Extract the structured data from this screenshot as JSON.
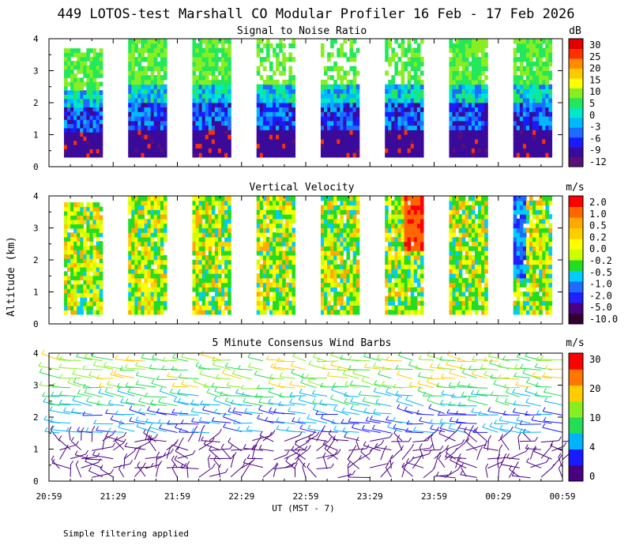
{
  "title": "449 LOTOS-test Marshall CO Modular Profiler 16 Feb - 17 Feb 2026",
  "shared_ylabel": "Altitude (km)",
  "footer_note": "Simple filtering applied",
  "colors": {
    "snr": [
      "#5a0e78",
      "#3a0a9a",
      "#1a1aff",
      "#1e6cff",
      "#00b8ff",
      "#00e8c8",
      "#22e85a",
      "#88ee22",
      "#ffff00",
      "#ffc800",
      "#ff8c00",
      "#ff3000",
      "#e00000"
    ],
    "velocity": [
      "#330033",
      "#4b0082",
      "#2020ff",
      "#1e6cff",
      "#00ccff",
      "#22dd22",
      "#ccff00",
      "#ffff00",
      "#ffcc00",
      "#ffaa00",
      "#ff6600",
      "#ff0000"
    ],
    "wind": [
      "#4b0082",
      "#1a1aff",
      "#00b4ff",
      "#22dd55",
      "#88ee22",
      "#ffcc00",
      "#ff7700",
      "#ff0000"
    ]
  },
  "chart_data": [
    {
      "type": "heatmap",
      "title": "Signal to Noise Ratio",
      "units": "dB",
      "xlabel": "UT  (MST - 7)",
      "ylabel": "Altitude (km)",
      "x_ticks": [
        "20:59",
        "21:29",
        "21:59",
        "22:29",
        "22:59",
        "23:29",
        "23:59",
        "00:29",
        "00:59"
      ],
      "y_ticks": [
        0,
        1,
        2,
        3,
        4
      ],
      "ylim": [
        0,
        4
      ],
      "colorbar_labels": [
        "30",
        "25",
        "20",
        "15",
        "10",
        "5",
        "0",
        "-3",
        "-6",
        "-9",
        "-12"
      ],
      "segments": [
        {
          "start": "21:06",
          "end": "21:24",
          "top_km": 3.7
        },
        {
          "start": "21:36",
          "end": "21:54",
          "top_km": 4.0
        },
        {
          "start": "22:06",
          "end": "22:24",
          "top_km": 4.0
        },
        {
          "start": "22:36",
          "end": "22:54",
          "top_km": 4.0
        },
        {
          "start": "23:06",
          "end": "23:24",
          "top_km": 4.0
        },
        {
          "start": "23:36",
          "end": "23:54",
          "top_km": 4.0
        },
        {
          "start": "00:06",
          "end": "00:24",
          "top_km": 4.0
        },
        {
          "start": "00:36",
          "end": "00:54",
          "top_km": 4.0
        }
      ]
    },
    {
      "type": "heatmap",
      "title": "Vertical Velocity",
      "units": "m/s",
      "xlabel": "UT  (MST - 7)",
      "ylabel": "Altitude (km)",
      "x_ticks": [
        "20:59",
        "21:29",
        "21:59",
        "22:29",
        "22:59",
        "23:29",
        "23:59",
        "00:29",
        "00:59"
      ],
      "y_ticks": [
        0,
        1,
        2,
        3,
        4
      ],
      "ylim": [
        0,
        4
      ],
      "colorbar_labels": [
        "2.0",
        "1.0",
        "0.5",
        "0.2",
        "0.0",
        "-0.2",
        "-0.5",
        "-1.0",
        "-2.0",
        "-5.0",
        "-10.0"
      ],
      "segments": [
        {
          "start": "21:06",
          "end": "21:24",
          "top_km": 3.8
        },
        {
          "start": "21:36",
          "end": "21:54",
          "top_km": 4.0
        },
        {
          "start": "22:06",
          "end": "22:24",
          "top_km": 4.0
        },
        {
          "start": "22:36",
          "end": "22:54",
          "top_km": 4.0
        },
        {
          "start": "23:06",
          "end": "23:24",
          "top_km": 4.0
        },
        {
          "start": "23:36",
          "end": "23:54",
          "top_km": 4.0
        },
        {
          "start": "00:06",
          "end": "00:24",
          "top_km": 4.0
        },
        {
          "start": "00:36",
          "end": "00:54",
          "top_km": 4.0
        }
      ]
    },
    {
      "type": "scatter",
      "title": "5 Minute Consensus Wind Barbs",
      "units": "m/s",
      "xlabel": "UT  (MST - 7)",
      "ylabel": "Altitude (km)",
      "x_ticks": [
        "20:59",
        "21:29",
        "21:59",
        "22:29",
        "22:59",
        "23:29",
        "23:59",
        "00:29",
        "00:59"
      ],
      "y_ticks": [
        0,
        1,
        2,
        3,
        4
      ],
      "ylim": [
        0,
        4
      ],
      "colorbar_labels": [
        "30",
        "20",
        "10",
        "4",
        "0"
      ]
    }
  ]
}
